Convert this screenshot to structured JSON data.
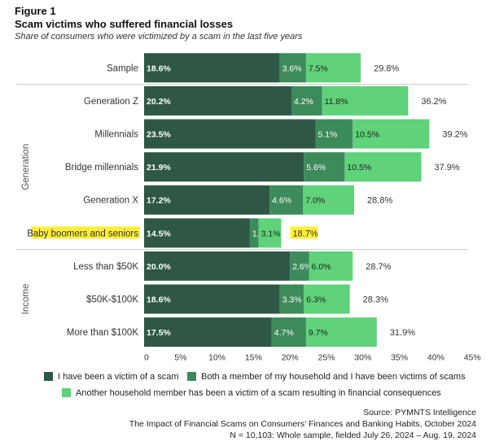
{
  "figure_label": "Figure 1",
  "title": "Scam victims who suffered financial losses",
  "subtitle": "Share of consumers who were victimized by a scam in the last five years",
  "colors": {
    "dark": "#2e5844",
    "medium": "#3d8a5a",
    "light": "#5fd27a",
    "highlight": "#ffee3a",
    "separator": "#c9c9c9"
  },
  "chart_data": {
    "type": "bar",
    "orientation": "horizontal",
    "stacked": true,
    "categories": [
      "Sample",
      "Generation Z",
      "Millennials",
      "Bridge millennials",
      "Generation X",
      "Baby boomers and seniors",
      "Less than $50K",
      "$50K-$100K",
      "More than $100K"
    ],
    "group_labels": [
      {
        "label": "Generation",
        "rows": [
          1,
          5
        ]
      },
      {
        "label": "Income",
        "rows": [
          6,
          8
        ]
      }
    ],
    "highlighted_category": "Baby boomers and seniors",
    "series": [
      {
        "name": "I have been a victim of a scam",
        "color": "#2e5844",
        "values": [
          18.6,
          20.2,
          23.5,
          21.9,
          17.2,
          14.5,
          20.0,
          18.6,
          17.5
        ],
        "labels": [
          "18.6%",
          "20.2%",
          "23.5%",
          "21.9%",
          "17.2%",
          "14.5%",
          "20.0%",
          "18.6%",
          "17.5%"
        ]
      },
      {
        "name": "Both a member of my household and I have been victims of scams",
        "color": "#3d8a5a",
        "values": [
          3.6,
          4.2,
          5.1,
          5.6,
          4.6,
          1.2,
          2.6,
          3.3,
          4.7
        ],
        "labels": [
          "3.6%",
          "4.2%",
          "5.1%",
          "5.6%",
          "4.6%",
          "1.2%",
          "2.6%",
          "3.3%",
          "4.7%"
        ]
      },
      {
        "name": "Another household member has been a victim of a scam resulting in financial consequences",
        "color": "#5fd27a",
        "values": [
          7.5,
          11.8,
          10.5,
          10.5,
          7.0,
          3.1,
          6.0,
          6.3,
          9.7
        ],
        "labels": [
          "7.5%",
          "11.8%",
          "10.5%",
          "10.5%",
          "7.0%",
          "3.1%",
          "6.0%",
          "6.3%",
          "9.7%"
        ]
      }
    ],
    "totals": [
      29.8,
      36.2,
      39.2,
      37.9,
      28.8,
      18.7,
      28.7,
      28.3,
      31.9
    ],
    "total_labels": [
      "29.8%",
      "36.2%",
      "39.2%",
      "37.9%",
      "28.8%",
      "18.7%",
      "28.7%",
      "28.3%",
      "31.9%"
    ],
    "xlim": [
      0,
      45
    ],
    "xticks": [
      0,
      5,
      10,
      15,
      20,
      25,
      30,
      35,
      40,
      45
    ],
    "xtick_labels": [
      "0",
      "5%",
      "10%",
      "15%",
      "20%",
      "25%",
      "30%",
      "35%",
      "40%",
      "45%"
    ],
    "grid": false,
    "legend_position": "bottom"
  },
  "source": {
    "line1": "Source: PYMNTS Intelligence",
    "line2": "The Impact of Financial Scams on Consumers’ Finances and Banking Habits, October 2024",
    "line3": "N = 10,103: Whole sample, fielded July 26, 2024 – Aug. 19, 2024"
  }
}
